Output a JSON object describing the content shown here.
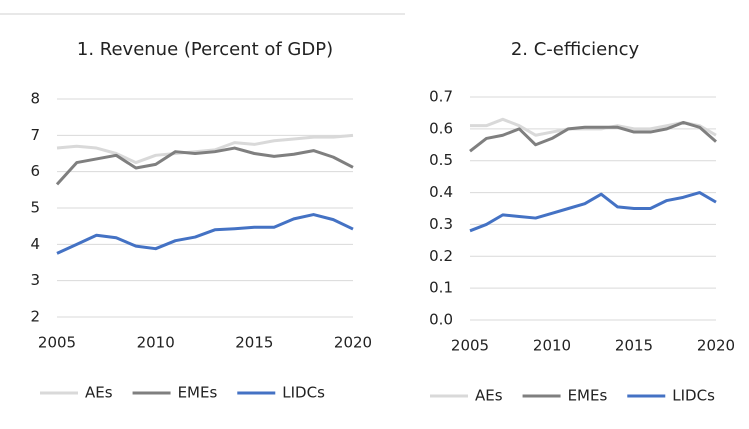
{
  "chart_data": [
    {
      "type": "line",
      "title": "1. Revenue (Percent of GDP)",
      "x": [
        2005,
        2006,
        2007,
        2008,
        2009,
        2010,
        2011,
        2012,
        2013,
        2014,
        2015,
        2016,
        2017,
        2018,
        2019,
        2020
      ],
      "xlim": [
        2005,
        2020
      ],
      "xticks": [
        2005,
        2010,
        2015,
        2020
      ],
      "ylim": [
        2,
        8
      ],
      "yticks": [
        2,
        3,
        4,
        5,
        6,
        7,
        8
      ],
      "grid": true,
      "series": [
        {
          "name": "AEs",
          "color": "#d9d9d9",
          "values": [
            6.65,
            6.7,
            6.65,
            6.5,
            6.25,
            6.45,
            6.5,
            6.55,
            6.6,
            6.8,
            6.75,
            6.85,
            6.9,
            6.95,
            6.95,
            7.0
          ]
        },
        {
          "name": "EMEs",
          "color": "#7f7f7f",
          "values": [
            5.65,
            6.25,
            6.35,
            6.45,
            6.1,
            6.2,
            6.55,
            6.5,
            6.55,
            6.65,
            6.5,
            6.42,
            6.48,
            6.58,
            6.4,
            6.12
          ]
        },
        {
          "name": "LIDCs",
          "color": "#4472c4",
          "values": [
            3.75,
            4.0,
            4.25,
            4.18,
            3.95,
            3.88,
            4.1,
            4.2,
            4.4,
            4.43,
            4.47,
            4.47,
            4.7,
            4.82,
            4.68,
            4.42
          ]
        }
      ]
    },
    {
      "type": "line",
      "title": "2. C-efficiency",
      "x": [
        2005,
        2006,
        2007,
        2008,
        2009,
        2010,
        2011,
        2012,
        2013,
        2014,
        2015,
        2016,
        2017,
        2018,
        2019,
        2020
      ],
      "xlim": [
        2005,
        2020
      ],
      "xticks": [
        2005,
        2010,
        2015,
        2020
      ],
      "ylim": [
        0,
        0.7
      ],
      "yticks": [
        {
          "value": 0,
          "label": "0.0"
        },
        0.1,
        0.2,
        0.3,
        0.4,
        0.5,
        0.6,
        0.7
      ],
      "grid": true,
      "series": [
        {
          "name": "AEs",
          "color": "#d9d9d9",
          "values": [
            0.61,
            0.61,
            0.63,
            0.61,
            0.58,
            0.59,
            0.6,
            0.6,
            0.6,
            0.61,
            0.6,
            0.6,
            0.61,
            0.62,
            0.61,
            0.58
          ]
        },
        {
          "name": "EMEs",
          "color": "#7f7f7f",
          "values": [
            0.53,
            0.57,
            0.58,
            0.6,
            0.55,
            0.57,
            0.6,
            0.605,
            0.605,
            0.605,
            0.59,
            0.59,
            0.6,
            0.62,
            0.605,
            0.56
          ]
        },
        {
          "name": "LIDCs",
          "color": "#4472c4",
          "values": [
            0.28,
            0.3,
            0.33,
            0.325,
            0.32,
            0.335,
            0.35,
            0.365,
            0.395,
            0.355,
            0.35,
            0.35,
            0.375,
            0.385,
            0.4,
            0.37
          ]
        }
      ]
    }
  ]
}
